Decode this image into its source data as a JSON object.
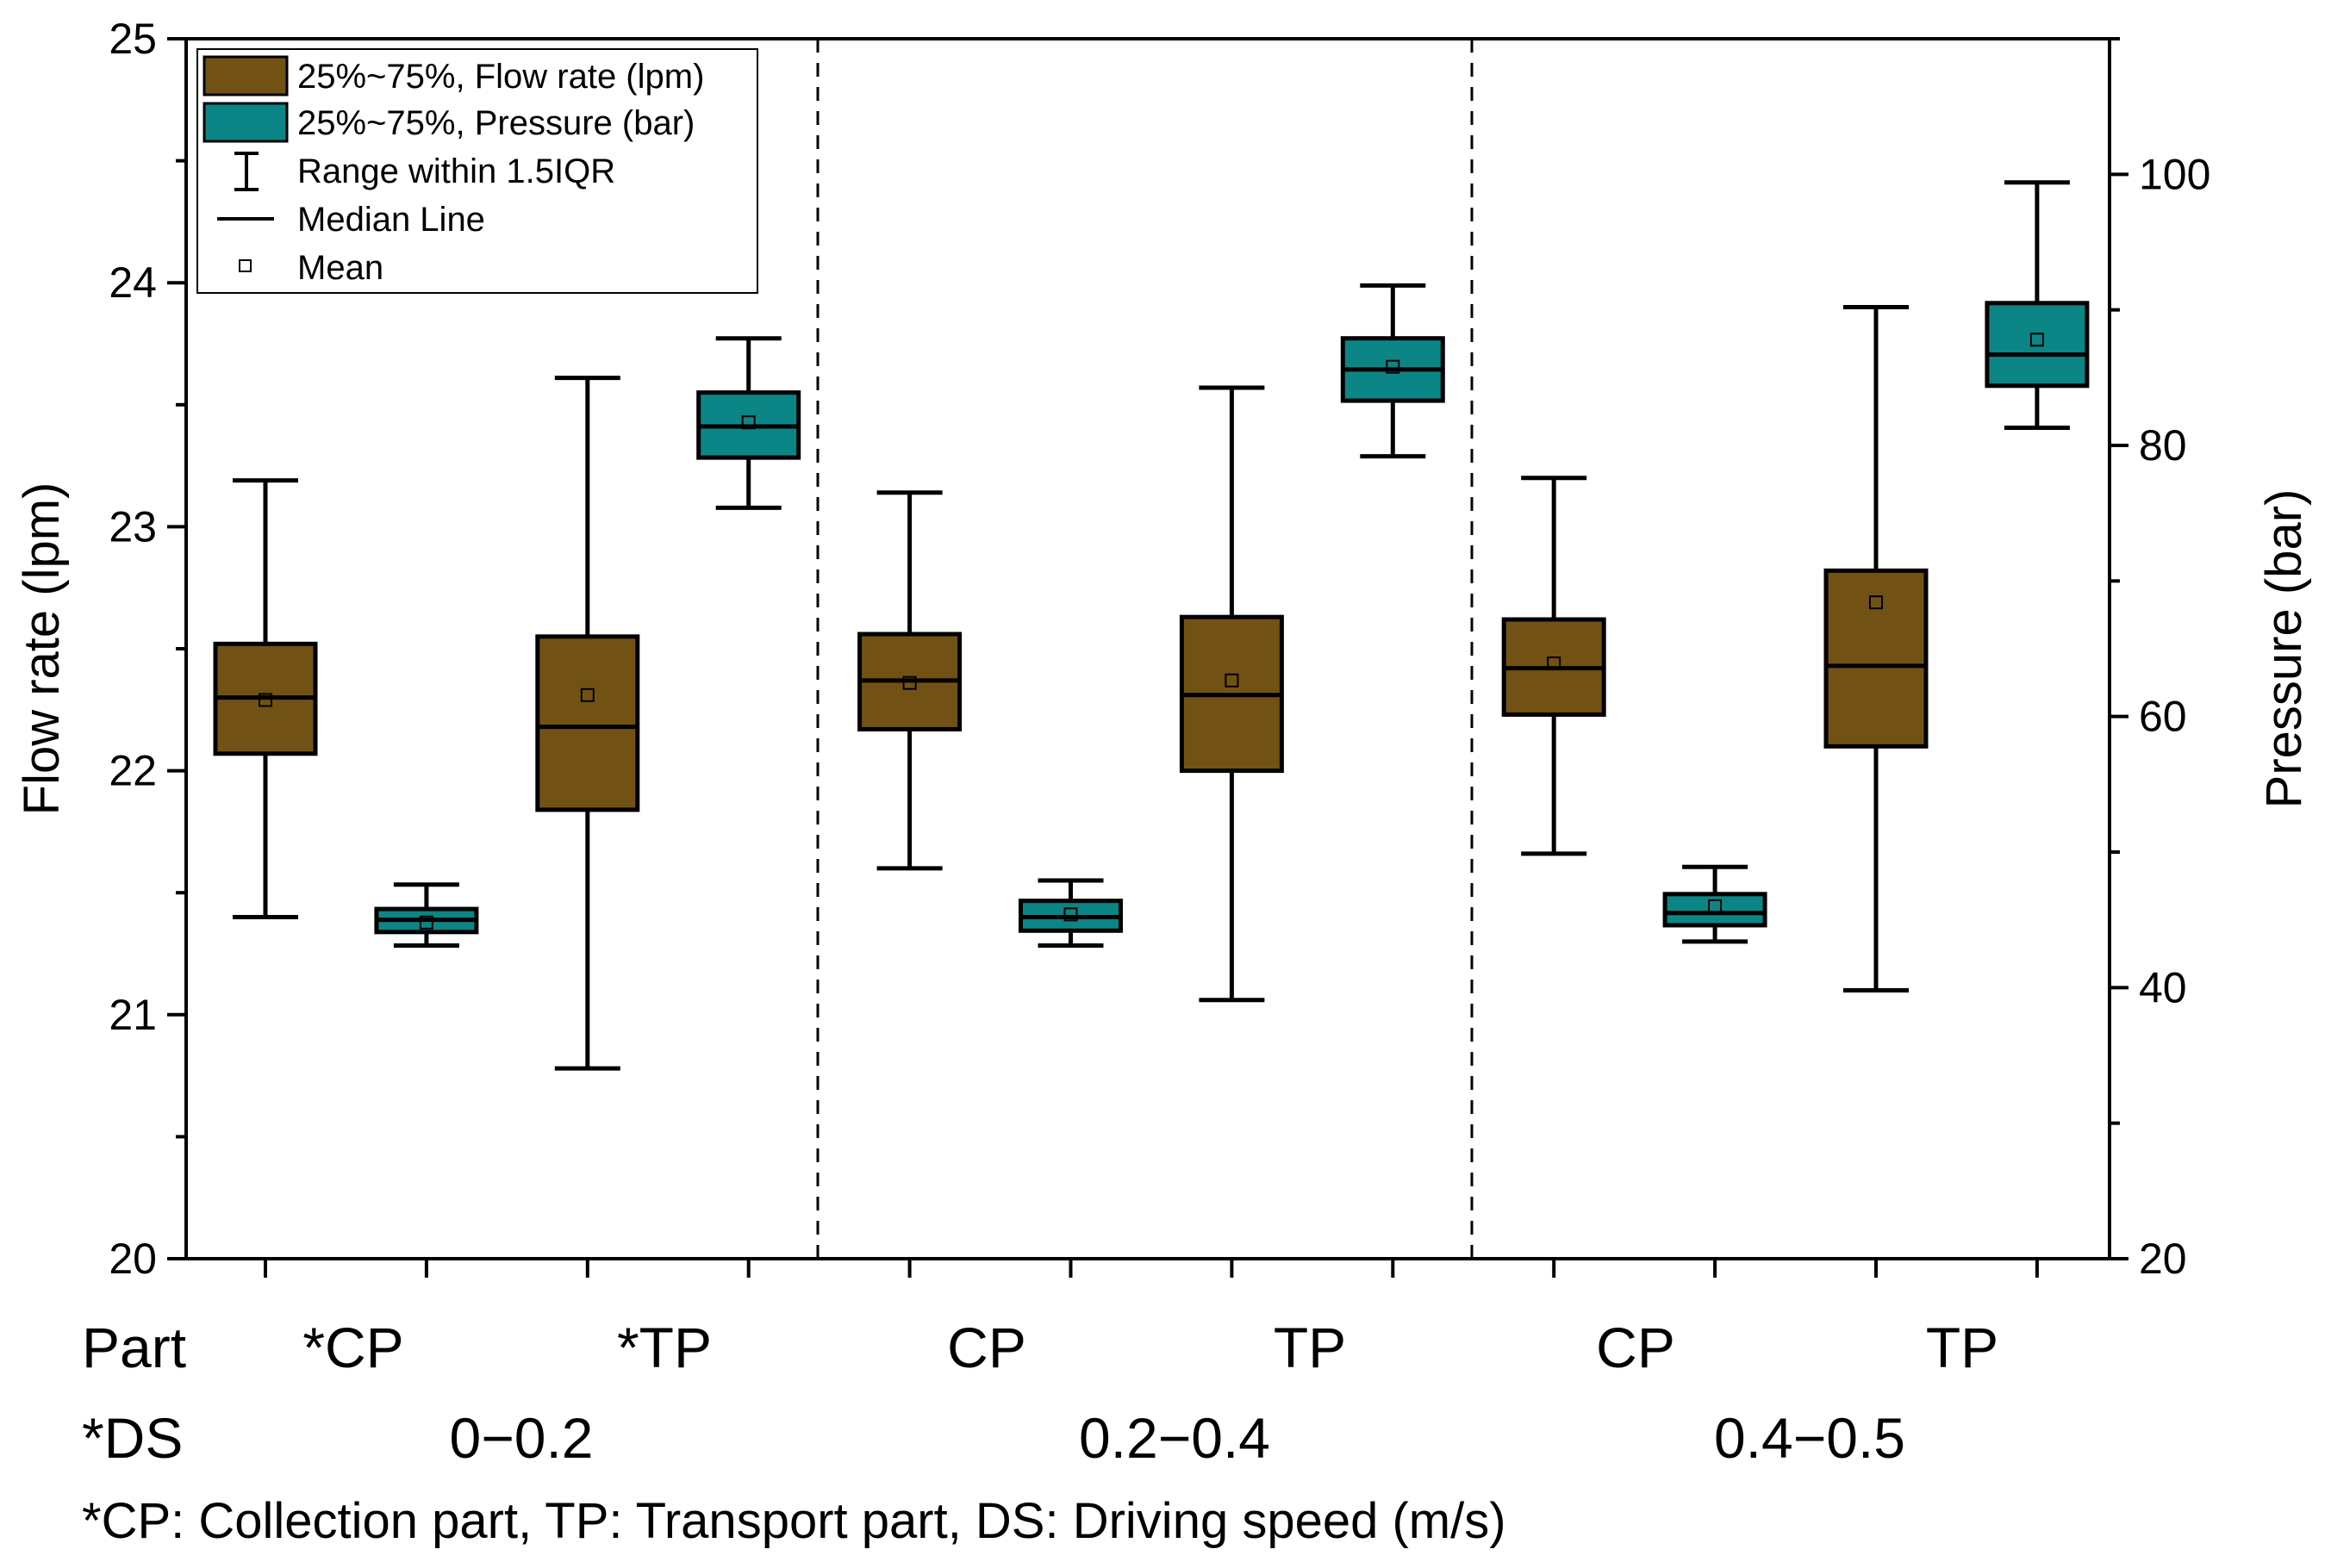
{
  "chart_data": {
    "type": "box",
    "y_left": {
      "label": "Flow rate (lpm)",
      "range": [
        20,
        25
      ],
      "ticks": [
        20,
        21,
        22,
        23,
        24,
        25
      ],
      "tick_labels": [
        "20",
        "21",
        "22",
        "23",
        "24",
        "25"
      ]
    },
    "y_right": {
      "label": "Pressure (bar)",
      "range": [
        20,
        110
      ],
      "ticks": [
        20,
        40,
        60,
        80,
        100
      ],
      "tick_labels": [
        "20",
        "40",
        "60",
        "80",
        "100"
      ]
    },
    "groups": [
      {
        "ds": "0−0.2",
        "part_labels": [
          "*CP",
          "*TP"
        ]
      },
      {
        "ds": "0.2−0.4",
        "part_labels": [
          "CP",
          "TP"
        ]
      },
      {
        "ds": "0.4−0.5",
        "part_labels": [
          "CP",
          "TP"
        ]
      }
    ],
    "row_labels": {
      "part": "Part",
      "ds": "*DS"
    },
    "footnote": "*CP: Collection part, TP: Transport part, DS: Driving speed (m/s)",
    "legend": {
      "flow_box": "25%~75%, Flow rate (lpm)",
      "pressure_box": "25%~75%, Pressure (bar)",
      "range": "Range within 1.5IQR",
      "median": "Median Line",
      "mean": "Mean"
    },
    "colors": {
      "flow": "#725214",
      "pressure": "#0b8585",
      "stroke": "#000000"
    },
    "boxes": [
      {
        "group": 0,
        "part": "CP",
        "metric": "flow",
        "axis": "left",
        "whisker_low": 21.4,
        "q1": 22.07,
        "median": 22.3,
        "q3": 22.52,
        "whisker_high": 23.19,
        "mean": 22.29
      },
      {
        "group": 0,
        "part": "CP",
        "metric": "pressure",
        "axis": "right",
        "whisker_low": 43.1,
        "q1": 44.1,
        "median": 45.0,
        "q3": 45.8,
        "whisker_high": 47.6,
        "mean": 44.8
      },
      {
        "group": 0,
        "part": "TP",
        "metric": "flow",
        "axis": "left",
        "whisker_low": 20.78,
        "q1": 21.84,
        "median": 22.18,
        "q3": 22.55,
        "whisker_high": 23.61,
        "mean": 22.31
      },
      {
        "group": 0,
        "part": "TP",
        "metric": "pressure",
        "axis": "right",
        "whisker_low": 75.4,
        "q1": 79.1,
        "median": 81.4,
        "q3": 83.9,
        "whisker_high": 87.9,
        "mean": 81.7
      },
      {
        "group": 1,
        "part": "CP",
        "metric": "flow",
        "axis": "left",
        "whisker_low": 21.6,
        "q1": 22.17,
        "median": 22.37,
        "q3": 22.56,
        "whisker_high": 23.14,
        "mean": 22.36
      },
      {
        "group": 1,
        "part": "CP",
        "metric": "pressure",
        "axis": "right",
        "whisker_low": 43.1,
        "q1": 44.2,
        "median": 45.2,
        "q3": 46.4,
        "whisker_high": 47.9,
        "mean": 45.4
      },
      {
        "group": 1,
        "part": "TP",
        "metric": "flow",
        "axis": "left",
        "whisker_low": 21.06,
        "q1": 22.0,
        "median": 22.31,
        "q3": 22.63,
        "whisker_high": 23.57,
        "mean": 22.37
      },
      {
        "group": 1,
        "part": "TP",
        "metric": "pressure",
        "axis": "right",
        "whisker_low": 79.2,
        "q1": 83.3,
        "median": 85.6,
        "q3": 87.9,
        "whisker_high": 91.8,
        "mean": 85.8
      },
      {
        "group": 2,
        "part": "CP",
        "metric": "flow",
        "axis": "left",
        "whisker_low": 21.66,
        "q1": 22.23,
        "median": 22.42,
        "q3": 22.62,
        "whisker_high": 23.2,
        "mean": 22.44
      },
      {
        "group": 2,
        "part": "CP",
        "metric": "pressure",
        "axis": "right",
        "whisker_low": 43.4,
        "q1": 44.6,
        "median": 45.5,
        "q3": 46.9,
        "whisker_high": 48.9,
        "mean": 46.0
      },
      {
        "group": 2,
        "part": "TP",
        "metric": "flow",
        "axis": "left",
        "whisker_low": 21.1,
        "q1": 22.1,
        "median": 22.43,
        "q3": 22.82,
        "whisker_high": 23.9,
        "mean": 22.69
      },
      {
        "group": 2,
        "part": "TP",
        "metric": "pressure",
        "axis": "right",
        "whisker_low": 81.3,
        "q1": 84.4,
        "median": 86.7,
        "q3": 90.5,
        "whisker_high": 99.4,
        "mean": 87.8
      }
    ]
  }
}
